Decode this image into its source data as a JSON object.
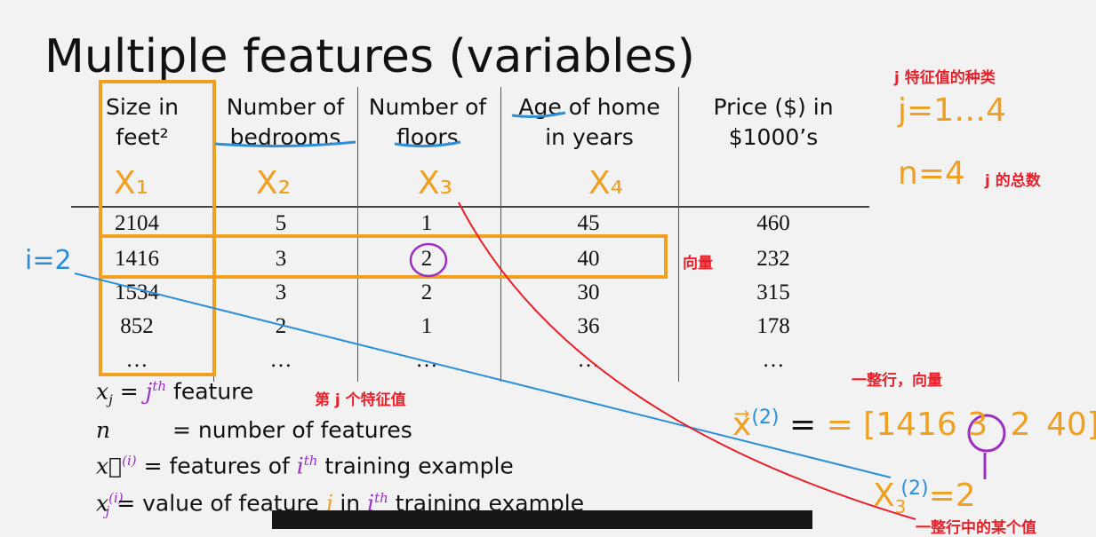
{
  "slide": {
    "title": "Multiple features (variables)",
    "headers": [
      {
        "line1": "Size in",
        "line2": "feet²"
      },
      {
        "line1": "Number of",
        "line2": "bedrooms"
      },
      {
        "line1": "Number of",
        "line2": "floors"
      },
      {
        "line1": "Age of home",
        "line2": "in years"
      },
      {
        "line1": "Price ($) in",
        "line2": "$1000’s"
      }
    ],
    "symbols": [
      "X₁",
      "X₂",
      "X₃",
      "X₄"
    ],
    "rows": [
      [
        "2104",
        "5",
        "1",
        "45",
        "460"
      ],
      [
        "1416",
        "3",
        "2",
        "40",
        "232"
      ],
      [
        "1534",
        "3",
        "2",
        "30",
        "315"
      ],
      [
        "852",
        "2",
        "1",
        "36",
        "178"
      ],
      [
        "…",
        "…",
        "…",
        "…",
        "…"
      ]
    ],
    "legend": {
      "l1_sym": "x",
      "l1_sub": "j",
      "l1_eq": " = ",
      "l1_j": "j",
      "l1_th": "th",
      "l1_text": " feature",
      "l2_sym": "n",
      "l2_text": "= number of features",
      "l3_sym": "x⃗",
      "l3_sup": "(i)",
      "l3_text": " = features of ",
      "l3_i": "i",
      "l3_th": "th",
      "l3_text2": " training example",
      "l4_sym": "x",
      "l4_sup": "(i)",
      "l4_sub": "j",
      "l4_text": " = value of feature ",
      "l4_j": "j",
      "l4_text2": " in ",
      "l4_i": "i",
      "l4_th": "th",
      "l4_text3": " training example"
    }
  },
  "annotations": {
    "j_kinds": "j 特征值的种类",
    "j_range": "j=1…4",
    "n_eq": "n=4",
    "n_total": "j 的总数",
    "i_eq": "i=2",
    "vector_label": "向量",
    "row_vector": "一整行，向量",
    "jth_feature_cn": "第 j 个特征值",
    "x2_lhs": "x⃗",
    "x2_sup": "(2)",
    "x2_eq": "= [1416 3",
    "x2_circled": "2",
    "x2_tail": "40]",
    "x32_lhs": "X",
    "x32_sub": "3",
    "x32_sup": "(2)",
    "x32_eq": "=2",
    "row_value": "一整行中的某个值"
  },
  "colors": {
    "orange": "#f0a020",
    "blue": "#2a8fd8",
    "red": "#e8202a",
    "purple": "#9b30c0"
  }
}
